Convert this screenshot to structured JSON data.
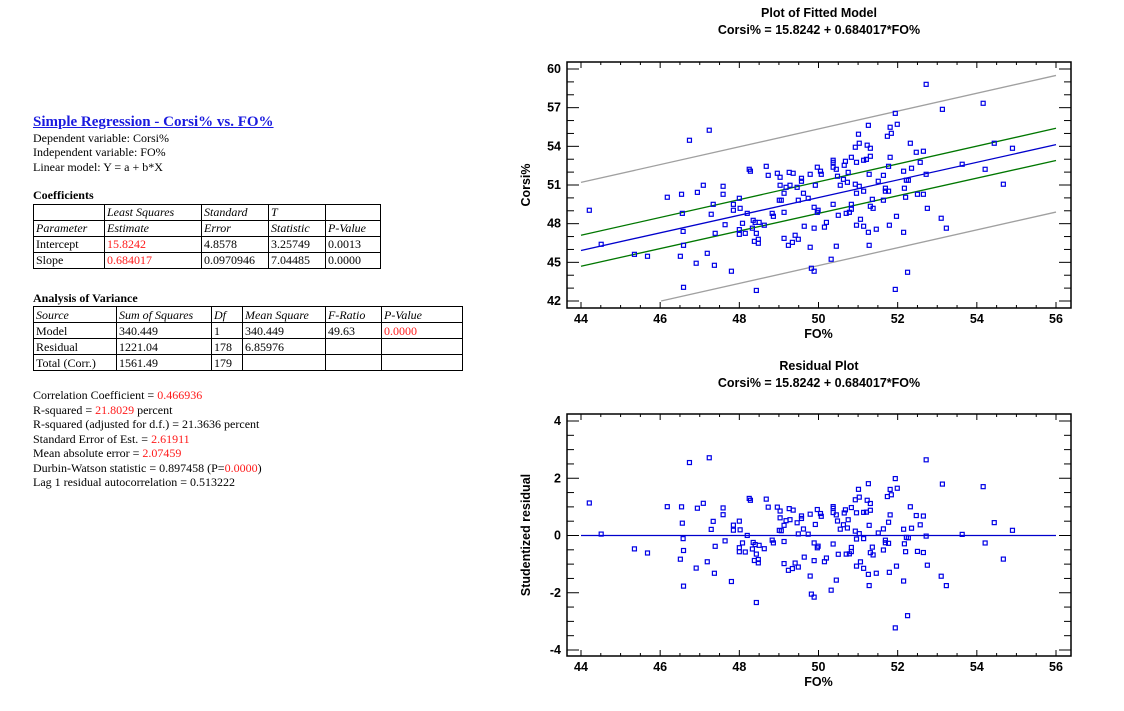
{
  "report": {
    "title": "Simple Regression - Corsi% vs. FO%",
    "dependent": "Dependent variable: Corsi%",
    "independent": "Independent variable: FO%",
    "model": "Linear model: Y = a + b*X",
    "coefficients": {
      "heading": "Coefficients",
      "header1": [
        "",
        "Least Squares",
        "Standard",
        "T",
        ""
      ],
      "header2": [
        "Parameter",
        "Estimate",
        "Error",
        "Statistic",
        "P-Value"
      ],
      "rows": [
        [
          "Intercept",
          "15.8242",
          "4.8578",
          "3.25749",
          "0.0013"
        ],
        [
          "Slope",
          "0.684017",
          "0.0970946",
          "7.04485",
          "0.0000"
        ]
      ]
    },
    "anova": {
      "heading": "Analysis of Variance",
      "header": [
        "Source",
        "Sum of Squares",
        "Df",
        "Mean Square",
        "F-Ratio",
        "P-Value"
      ],
      "rows": [
        [
          "Model",
          "340.449",
          "1",
          "340.449",
          "49.63",
          "0.0000"
        ],
        [
          "Residual",
          "1221.04",
          "178",
          "6.85976",
          "",
          ""
        ],
        [
          "Total (Corr.)",
          "1561.49",
          "179",
          "",
          "",
          ""
        ]
      ]
    },
    "summary": {
      "corr_label": "Correlation Coefficient = ",
      "corr_value": "0.466936",
      "r2_label": "R-squared = ",
      "r2_value": "21.8029",
      "r2_suffix": " percent",
      "r2adj": "R-squared (adjusted for d.f.) = 21.3636 percent",
      "se_label": "Standard Error of Est. = ",
      "se_value": "2.61911",
      "mae_label": "Mean absolute error = ",
      "mae_value": "2.07459",
      "dw_label": "Durbin-Watson statistic = 0.897458 (P=",
      "dw_p": "0.0000",
      "dw_close": ")",
      "lag1": "Lag 1 residual autocorrelation = 0.513222"
    }
  },
  "colors": {
    "points": "#0000e6",
    "fit": "#0000cc",
    "confidence": "#007700",
    "prediction": "#a0a0a0",
    "highlight": "#ff1a1a",
    "link": "#1a1adf"
  },
  "chart_data": [
    {
      "type": "scatter",
      "title": "Plot of Fitted Model",
      "subtitle": "Corsi% = 15.8242 + 0.684017*FO%",
      "xlabel": "FO%",
      "ylabel": "Corsi%",
      "xlim": [
        44,
        56
      ],
      "ylim": [
        42,
        60
      ],
      "xticks": [
        44,
        46,
        48,
        50,
        52,
        54,
        56
      ],
      "yticks": [
        42,
        45,
        48,
        51,
        54,
        57,
        60
      ],
      "grid": false,
      "fit": {
        "intercept": 15.8242,
        "slope": 0.684017
      },
      "confidence_limits": {
        "x": [
          44,
          56
        ],
        "upper": [
          47.1,
          55.4
        ],
        "lower": [
          44.7,
          52.9
        ]
      },
      "prediction_limits": {
        "x": [
          44,
          56
        ],
        "upper": [
          51.2,
          59.5
        ],
        "lower": [
          40.6,
          48.9
        ]
      },
      "points": [
        [
          44.21,
          49.04
        ],
        [
          44.51,
          46.4
        ],
        [
          45.35,
          45.62
        ],
        [
          45.68,
          45.47
        ],
        [
          46.18,
          50.05
        ],
        [
          46.54,
          50.28
        ],
        [
          46.56,
          48.8
        ],
        [
          46.58,
          47.4
        ],
        [
          46.59,
          46.32
        ],
        [
          46.51,
          45.47
        ],
        [
          46.59,
          43.06
        ],
        [
          46.74,
          54.47
        ],
        [
          46.94,
          50.43
        ],
        [
          46.91,
          44.93
        ],
        [
          47.09,
          50.98
        ],
        [
          47.19,
          45.7
        ],
        [
          47.24,
          55.25
        ],
        [
          47.29,
          48.73
        ],
        [
          47.34,
          49.5
        ],
        [
          47.37,
          44.77
        ],
        [
          47.39,
          47.25
        ],
        [
          47.59,
          50.9
        ],
        [
          47.59,
          50.28
        ],
        [
          47.64,
          47.92
        ],
        [
          47.8,
          44.31
        ],
        [
          47.85,
          49.5
        ],
        [
          47.85,
          49.04
        ],
        [
          48.0,
          49.97
        ],
        [
          48.0,
          47.54
        ],
        [
          48.0,
          47.17
        ],
        [
          48.02,
          49.19
        ],
        [
          48.08,
          48.03
        ],
        [
          48.15,
          47.25
        ],
        [
          48.2,
          48.8
        ],
        [
          48.25,
          52.22
        ],
        [
          48.28,
          52.07
        ],
        [
          48.33,
          47.65
        ],
        [
          48.35,
          48.26
        ],
        [
          48.38,
          46.63
        ],
        [
          48.4,
          48.1
        ],
        [
          48.43,
          47.25
        ],
        [
          48.43,
          42.82
        ],
        [
          48.48,
          46.79
        ],
        [
          48.48,
          46.48
        ],
        [
          48.5,
          48.1
        ],
        [
          48.63,
          47.88
        ],
        [
          48.68,
          52.45
        ],
        [
          48.73,
          51.75
        ],
        [
          48.83,
          48.8
        ],
        [
          48.86,
          48.57
        ],
        [
          48.96,
          51.91
        ],
        [
          49.01,
          49.82
        ],
        [
          49.03,
          51.6
        ],
        [
          49.03,
          50.98
        ],
        [
          49.06,
          49.82
        ],
        [
          49.13,
          50.36
        ],
        [
          49.13,
          48.88
        ],
        [
          49.13,
          46.86
        ],
        [
          49.18,
          50.82
        ],
        [
          49.24,
          46.32
        ],
        [
          49.26,
          51.98
        ],
        [
          49.28,
          50.98
        ],
        [
          49.34,
          46.55
        ],
        [
          49.36,
          51.91
        ],
        [
          49.41,
          47.1
        ],
        [
          49.46,
          50.82
        ],
        [
          49.49,
          49.82
        ],
        [
          49.49,
          46.79
        ],
        [
          49.57,
          51.52
        ],
        [
          49.57,
          51.29
        ],
        [
          49.62,
          50.36
        ],
        [
          49.64,
          47.8
        ],
        [
          49.74,
          49.97
        ],
        [
          49.79,
          51.83
        ],
        [
          49.79,
          46.17
        ],
        [
          49.82,
          44.54
        ],
        [
          49.89,
          47.65
        ],
        [
          49.89,
          44.31
        ],
        [
          49.92,
          50.98
        ],
        [
          49.97,
          52.38
        ],
        [
          49.99,
          49.04
        ],
        [
          49.89,
          49.27
        ],
        [
          49.97,
          48.88
        ],
        [
          50.05,
          52.07
        ],
        [
          50.07,
          51.83
        ],
        [
          50.15,
          47.73
        ],
        [
          50.2,
          48.1
        ],
        [
          50.32,
          45.24
        ],
        [
          50.37,
          52.92
        ],
        [
          50.37,
          52.76
        ],
        [
          50.37,
          52.38
        ],
        [
          50.37,
          49.5
        ],
        [
          50.45,
          52.22
        ],
        [
          50.45,
          46.25
        ],
        [
          50.48,
          51.68
        ],
        [
          50.5,
          48.65
        ],
        [
          50.55,
          50.98
        ],
        [
          50.63,
          51.44
        ],
        [
          50.65,
          52.53
        ],
        [
          50.68,
          52.84
        ],
        [
          50.7,
          48.8
        ],
        [
          50.73,
          51.21
        ],
        [
          50.75,
          51.98
        ],
        [
          50.78,
          48.88
        ],
        [
          50.83,
          53.15
        ],
        [
          50.83,
          49.5
        ],
        [
          50.83,
          49.12
        ],
        [
          50.93,
          53.93
        ],
        [
          50.93,
          51.06
        ],
        [
          50.96,
          52.76
        ],
        [
          50.96,
          50.36
        ],
        [
          50.96,
          47.88
        ],
        [
          51.01,
          54.94
        ],
        [
          51.03,
          54.24
        ],
        [
          51.03,
          50.9
        ],
        [
          51.06,
          48.34
        ],
        [
          51.14,
          52.92
        ],
        [
          51.14,
          50.52
        ],
        [
          51.14,
          47.8
        ],
        [
          51.21,
          52.99
        ],
        [
          51.23,
          54.09
        ],
        [
          51.26,
          55.63
        ],
        [
          51.26,
          47.33
        ],
        [
          51.28,
          51.83
        ],
        [
          51.28,
          46.32
        ],
        [
          51.31,
          53.85
        ],
        [
          51.31,
          53.23
        ],
        [
          51.31,
          49.35
        ],
        [
          51.36,
          49.89
        ],
        [
          51.38,
          49.19
        ],
        [
          51.46,
          47.57
        ],
        [
          51.51,
          51.29
        ],
        [
          51.64,
          51.75
        ],
        [
          51.64,
          49.82
        ],
        [
          51.69,
          50.75
        ],
        [
          51.69,
          50.52
        ],
        [
          51.74,
          54.78
        ],
        [
          51.77,
          52.45
        ],
        [
          51.77,
          50.52
        ],
        [
          51.79,
          47.88
        ],
        [
          51.81,
          55.48
        ],
        [
          51.81,
          53.15
        ],
        [
          51.84,
          55.01
        ],
        [
          51.94,
          56.56
        ],
        [
          51.94,
          42.9
        ],
        [
          51.97,
          48.57
        ],
        [
          51.99,
          55.71
        ],
        [
          52.15,
          52.07
        ],
        [
          52.15,
          47.33
        ],
        [
          52.17,
          50.75
        ],
        [
          52.2,
          50.05
        ],
        [
          52.22,
          51.37
        ],
        [
          52.25,
          44.23
        ],
        [
          52.27,
          51.37
        ],
        [
          52.32,
          54.24
        ],
        [
          52.35,
          52.3
        ],
        [
          52.47,
          53.54
        ],
        [
          52.5,
          50.28
        ],
        [
          52.57,
          52.76
        ],
        [
          52.65,
          53.62
        ],
        [
          52.65,
          50.28
        ],
        [
          52.72,
          58.81
        ],
        [
          52.72,
          51.83
        ],
        [
          52.75,
          49.19
        ],
        [
          53.1,
          48.42
        ],
        [
          53.13,
          56.87
        ],
        [
          53.23,
          47.65
        ],
        [
          53.63,
          52.61
        ],
        [
          54.16,
          57.34
        ],
        [
          54.21,
          52.22
        ],
        [
          54.44,
          54.24
        ],
        [
          54.67,
          51.06
        ],
        [
          54.9,
          53.85
        ]
      ]
    },
    {
      "type": "scatter",
      "title": "Residual Plot",
      "subtitle": "Corsi% = 15.8242 + 0.684017*FO%",
      "xlabel": "FO%",
      "ylabel": "Studentized residual",
      "xlim": [
        44,
        56
      ],
      "ylim": [
        -4,
        4
      ],
      "xticks": [
        44,
        46,
        48,
        50,
        52,
        54,
        56
      ],
      "yticks": [
        -4,
        -2,
        0,
        2,
        4
      ],
      "grid": false,
      "reference_line": 0,
      "residual_source": "points of the fitted-model chart, residual = (y - fit) / 2.61911"
    }
  ]
}
